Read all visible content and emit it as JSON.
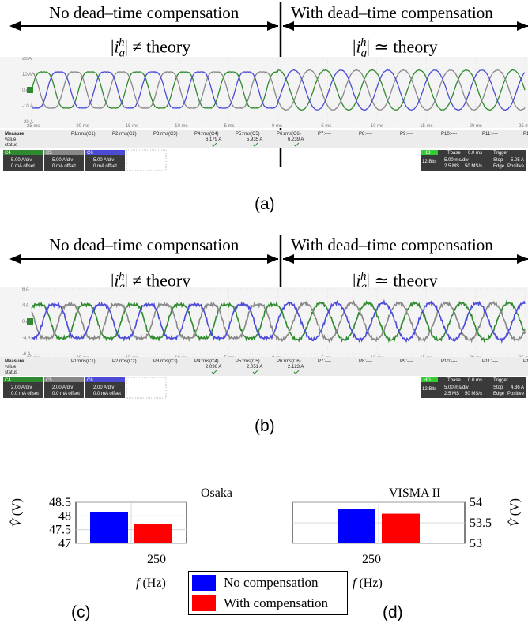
{
  "scope_a": {
    "label": "(a)",
    "header_left": "No dead–time compensation",
    "header_right": "With dead–time compensation",
    "eq_left_rel": "≠ theory",
    "eq_right_rel": "≃ theory",
    "y_ticks": [
      "20 A",
      "10 A",
      "0 A",
      "-10 A",
      "-20 A"
    ],
    "x_ticks": [
      "-25 ms",
      "-20 ms",
      "-15 ms",
      "-10 ms",
      "-5 ms",
      "0 ms",
      "5 ms",
      "10 ms",
      "15 ms",
      "20 ms",
      "25 ms"
    ],
    "measure_label": "Measure",
    "value_label": "value",
    "status_label": "status",
    "params": [
      "P1:rms(C1)",
      "P2:rms(C2)",
      "P3:rms(C3)",
      "P4:rms(C4)",
      "P5:rms(C5)",
      "P6:rms(C6)",
      "P7:----",
      "P8:----",
      "P9:----",
      "P10:----",
      "P11:----",
      "P12:----"
    ],
    "values": [
      "",
      "",
      "",
      "6.179 A",
      "5.935 A",
      "6.239 A"
    ],
    "channels": [
      {
        "name": "C4",
        "scale": "5.00 A/div",
        "offset": "0 mA offset",
        "color": "#2e8a2e"
      },
      {
        "name": "C5",
        "scale": "5.00 A/div",
        "offset": "0 mA offset",
        "color": "#888888"
      },
      {
        "name": "C6",
        "scale": "5.00 A/div",
        "offset": "0 mA offset",
        "color": "#4b4bd6"
      }
    ],
    "timebase": {
      "hd": "HD",
      "bits": "12 Bits",
      "tbase": "Tbase",
      "tbase_val": "0.0 ms",
      "div": "5.00 ms/div",
      "rate": "2.5 MS",
      "srate": "50 MS/s",
      "trigger": "Trigger",
      "stop": "Stop",
      "edge": "Edge",
      "trig_val": "5.05 A",
      "positive": "Positive"
    }
  },
  "scope_b": {
    "label": "(b)",
    "header_left": "No dead–time compensation",
    "header_right": "With dead–time compensation",
    "eq_left_rel": "≠ theory",
    "eq_right_rel": "≃ theory",
    "y_ticks": [
      "6 A",
      "4 A",
      "0 A",
      "-4 A",
      "-6 A"
    ],
    "x_ticks": [
      "-25 ms",
      "-20 ms",
      "-15 ms",
      "-10 ms",
      "-5 ms",
      "0 ms",
      "5 ms",
      "10 ms",
      "15 ms",
      "20 ms",
      "25 ms"
    ],
    "measure_label": "Measure",
    "value_label": "value",
    "status_label": "status",
    "params": [
      "P1:rms(C1)",
      "P2:rms(C2)",
      "P3:rms(C3)",
      "P4:rms(C4)",
      "P5:rms(C5)",
      "P6:rms(C6)",
      "P7:----",
      "P8:----",
      "P9:----",
      "P10:----",
      "P11:----",
      "P12:----"
    ],
    "values": [
      "",
      "",
      "",
      "2.096 A",
      "2.051 A",
      "2.123 A"
    ],
    "channels": [
      {
        "name": "C4",
        "scale": "2.00 A/div",
        "offset": "0.0 mA offset",
        "color": "#2e8a2e"
      },
      {
        "name": "C5",
        "scale": "2.00 A/div",
        "offset": "0.0 mA offset",
        "color": "#888888"
      },
      {
        "name": "C6",
        "scale": "2.00 A/div",
        "offset": "0.0 mA offset",
        "color": "#4b4bd6"
      }
    ],
    "timebase": {
      "hd": "HD",
      "bits": "12 Bits",
      "tbase": "Tbase",
      "tbase_val": "0.0 ms",
      "div": "5.00 ms/div",
      "rate": "2.5 MS",
      "srate": "50 MS/s",
      "trigger": "Trigger",
      "stop": "Stop",
      "edge": "Edge",
      "trig_val": "4.36 A",
      "positive": "Positive"
    }
  },
  "chart_data": [
    {
      "type": "bar",
      "label": "(c)",
      "annotation": "Osaka",
      "categories": [
        "250"
      ],
      "series": [
        {
          "name": "No compensation",
          "values": [
            48.13
          ],
          "color": "#0000ff"
        },
        {
          "name": "With compensation",
          "values": [
            47.7
          ],
          "color": "#ff0000"
        }
      ],
      "ylim": [
        47,
        48.5
      ],
      "yticks": [
        "47",
        "47.5",
        "48",
        "48.5"
      ],
      "xlabel_var": "f",
      "xlabel_unit": "(Hz)",
      "ylabel_var": "V",
      "ylabel_unit": "(V)",
      "y_axis_side": "left",
      "grid": true
    },
    {
      "type": "bar",
      "label": "(d)",
      "annotation": "VISMA II",
      "categories": [
        "250"
      ],
      "series": [
        {
          "name": "No compensation",
          "values": [
            53.84
          ],
          "color": "#0000ff"
        },
        {
          "name": "With compensation",
          "values": [
            53.72
          ],
          "color": "#ff0000"
        }
      ],
      "ylim": [
        53,
        54
      ],
      "yticks": [
        "53",
        "53.5",
        "54"
      ],
      "xlabel_var": "f",
      "xlabel_unit": "(Hz)",
      "ylabel_var": "V",
      "ylabel_unit": "(V)",
      "y_axis_side": "right",
      "grid": true
    }
  ],
  "legend": {
    "items": [
      {
        "label": "No compensation",
        "color": "#0000ff"
      },
      {
        "label": "With compensation",
        "color": "#ff0000"
      }
    ]
  }
}
